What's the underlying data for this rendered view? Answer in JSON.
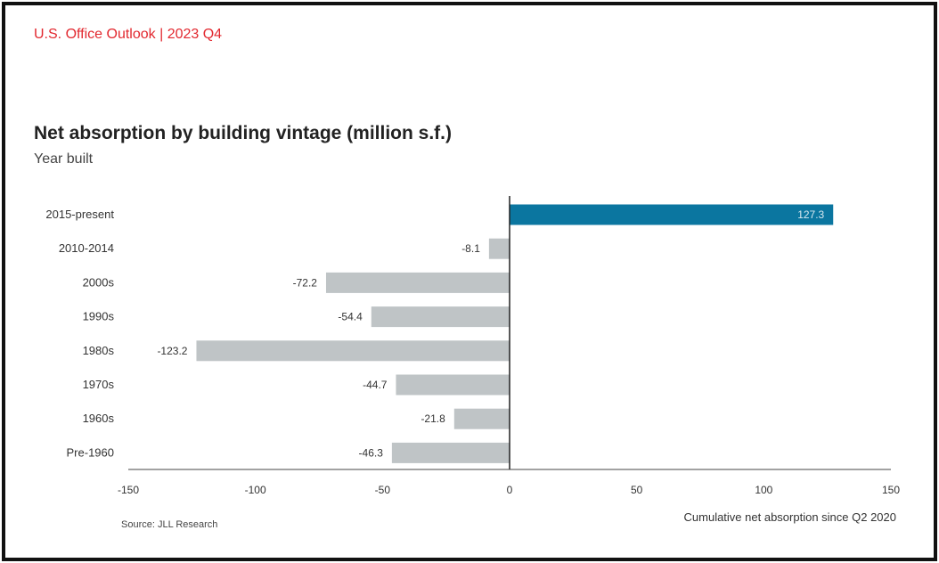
{
  "header": {
    "report": "U.S. Office Outlook | 2023 Q4"
  },
  "colors": {
    "positive": "#0b76a0",
    "negative": "#bfc4c6",
    "header_red": "#e2282f"
  },
  "chart_data": {
    "type": "bar",
    "orientation": "horizontal",
    "title": "Net absorption by building vintage (million s.f.)",
    "ylabel": "Year built",
    "xlabel": "Cumulative net absorption since Q2 2020",
    "categories": [
      "2015-present",
      "2010-2014",
      "2000s",
      "1990s",
      "1980s",
      "1970s",
      "1960s",
      "Pre-1960"
    ],
    "values": [
      127.3,
      -8.1,
      -72.2,
      -54.4,
      -123.2,
      -44.7,
      -21.8,
      -46.3
    ],
    "value_labels": [
      "127.3",
      "-8.1",
      "-72.2",
      "-54.4",
      "-123.2",
      "-44.7",
      "-21.8",
      "-46.3"
    ],
    "xlim": [
      -150,
      150
    ],
    "xticks": [
      -150,
      -100,
      -50,
      0,
      50,
      100,
      150
    ],
    "grid": false,
    "source": "Source: JLL Research"
  }
}
